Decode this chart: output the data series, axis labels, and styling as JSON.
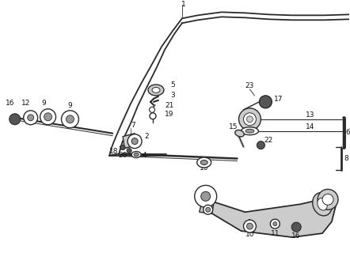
{
  "bg": "white",
  "lc": "#2a2a2a",
  "lw": 1.0,
  "gray_light": "#cccccc",
  "gray_mid": "#999999",
  "gray_dark": "#555555",
  "black": "#111111"
}
